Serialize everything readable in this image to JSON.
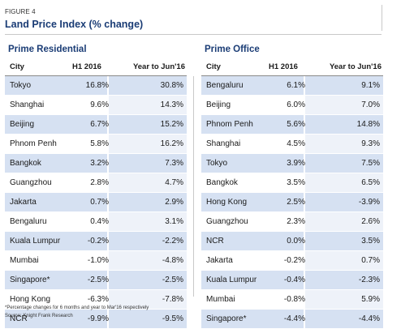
{
  "figure_label": "FIGURE 4",
  "title": "Land Price Index (% change)",
  "residential": {
    "section_title": "Prime Residential",
    "headers": [
      "City",
      "H1 2016",
      "Year to Jun'16"
    ],
    "rows": [
      [
        "Tokyo",
        "16.8%",
        "30.8%"
      ],
      [
        "Shanghai",
        "9.6%",
        "14.3%"
      ],
      [
        "Beijing",
        "6.7%",
        "15.2%"
      ],
      [
        "Phnom Penh",
        "5.8%",
        "16.2%"
      ],
      [
        "Bangkok",
        "3.2%",
        "7.3%"
      ],
      [
        "Guangzhou",
        "2.8%",
        "4.7%"
      ],
      [
        "Jakarta",
        "0.7%",
        "2.9%"
      ],
      [
        "Bengaluru",
        "0.4%",
        "3.1%"
      ],
      [
        "Kuala Lumpur",
        "-0.2%",
        "-2.2%"
      ],
      [
        "Mumbai",
        "-1.0%",
        "-4.8%"
      ],
      [
        "Singapore*",
        "-2.5%",
        "-2.5%"
      ],
      [
        "Hong Kong",
        "-6.3%",
        "-7.8%"
      ],
      [
        "NCR",
        "-9.9%",
        "-9.5%"
      ]
    ]
  },
  "office": {
    "section_title": "Prime Office",
    "headers": [
      "City",
      "H1 2016",
      "Year to Jun'16"
    ],
    "rows": [
      [
        "Bengaluru",
        "6.1%",
        "9.1%"
      ],
      [
        "Beijing",
        "6.0%",
        "7.0%"
      ],
      [
        "Phnom Penh",
        "5.6%",
        "14.8%"
      ],
      [
        "Shanghai",
        "4.5%",
        "9.3%"
      ],
      [
        "Tokyo",
        "3.9%",
        "7.5%"
      ],
      [
        "Bangkok",
        "3.5%",
        "6.5%"
      ],
      [
        "Hong Kong",
        "2.5%",
        "-3.9%"
      ],
      [
        "Guangzhou",
        "2.3%",
        "2.6%"
      ],
      [
        "NCR",
        "0.0%",
        "3.5%"
      ],
      [
        "Jakarta",
        "-0.2%",
        "0.7%"
      ],
      [
        "Kuala Lumpur",
        "-0.4%",
        "-2.3%"
      ],
      [
        "Mumbai",
        "-0.8%",
        "5.9%"
      ],
      [
        "Singapore*",
        "-4.4%",
        "-4.4%"
      ]
    ]
  },
  "footnote": "*Percentage changes for 6 months and year to Mar'16 respectively",
  "source": "Source: Knight Frank Research",
  "colors": {
    "title": "#1a3c75",
    "band": "#d6e1f2",
    "band_light": "#eef2f9"
  }
}
